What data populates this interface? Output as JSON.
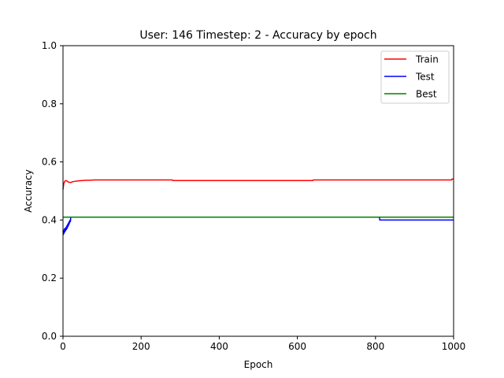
{
  "chart_data": {
    "type": "line",
    "title": "User: 146 Timestep: 2 - Accuracy by epoch",
    "xlabel": "Epoch",
    "ylabel": "Accuracy",
    "xlim": [
      0,
      1000
    ],
    "ylim": [
      0.0,
      1.0
    ],
    "xticks": [
      0,
      200,
      400,
      600,
      800,
      1000
    ],
    "yticks": [
      0.0,
      0.2,
      0.4,
      0.6,
      0.8,
      1.0
    ],
    "xtick_labels": [
      "0",
      "200",
      "400",
      "600",
      "800",
      "1000"
    ],
    "ytick_labels": [
      "0.0",
      "0.2",
      "0.4",
      "0.6",
      "0.8",
      "1.0"
    ],
    "grid": false,
    "legend_position": "top-right",
    "series": [
      {
        "name": "Train",
        "color": "#ff0000",
        "x": [
          0,
          2,
          4,
          6,
          8,
          10,
          12,
          15,
          20,
          25,
          30,
          40,
          50,
          60,
          70,
          80,
          100,
          150,
          200,
          250,
          280,
          281,
          400,
          500,
          600,
          640,
          641,
          700,
          800,
          900,
          995,
          996,
          1000
        ],
        "y": [
          0.505,
          0.525,
          0.532,
          0.535,
          0.536,
          0.534,
          0.532,
          0.53,
          0.529,
          0.532,
          0.533,
          0.535,
          0.536,
          0.537,
          0.537,
          0.538,
          0.538,
          0.538,
          0.538,
          0.538,
          0.538,
          0.536,
          0.536,
          0.536,
          0.536,
          0.536,
          0.538,
          0.538,
          0.538,
          0.538,
          0.538,
          0.541,
          0.541
        ]
      },
      {
        "name": "Test",
        "color": "#0000ff",
        "x": [
          0,
          1,
          2,
          3,
          4,
          5,
          6,
          7,
          8,
          9,
          10,
          11,
          12,
          13,
          14,
          15,
          16,
          17,
          18,
          19,
          20,
          21,
          810,
          811,
          1000
        ],
        "y": [
          0.362,
          0.35,
          0.365,
          0.355,
          0.37,
          0.36,
          0.372,
          0.364,
          0.375,
          0.368,
          0.38,
          0.372,
          0.385,
          0.378,
          0.39,
          0.383,
          0.395,
          0.39,
          0.4,
          0.395,
          0.41,
          0.41,
          0.41,
          0.4,
          0.4
        ]
      },
      {
        "name": "Best",
        "color": "#008000",
        "x": [
          0,
          1000
        ],
        "y": [
          0.41,
          0.41
        ]
      }
    ]
  }
}
